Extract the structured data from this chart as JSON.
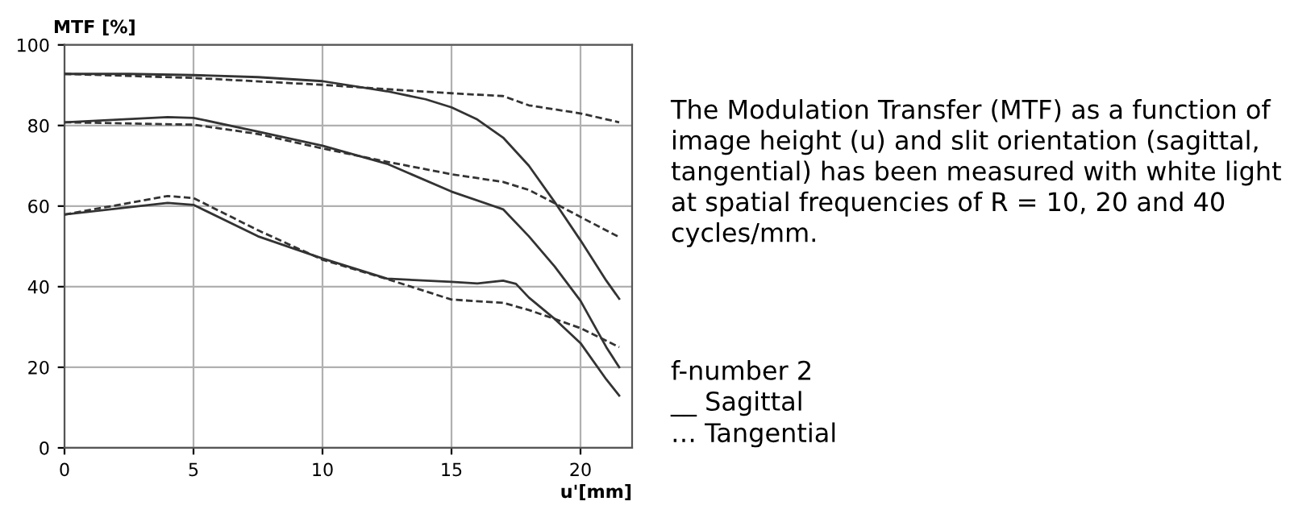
{
  "chart_data": {
    "type": "line",
    "ylabel": "MTF [%]",
    "xlabel": "u'[mm]",
    "xlim": [
      0,
      22
    ],
    "ylim": [
      0,
      100
    ],
    "xticks": [
      0,
      5,
      10,
      15,
      20
    ],
    "yticks": [
      0,
      20,
      40,
      60,
      80,
      100
    ],
    "grid": true,
    "marker": "none",
    "annotations": [
      "The Modulation Transfer (MTF) as a function of image height (u) and slit orientation (sagittal, tangential) has been measured with white light at spatial frequencies of R = 10, 20 and 40 cycles/mm.",
      "f-number 2",
      "__ Sagittal",
      "… Tangential"
    ],
    "series": [
      {
        "color": "#333333",
        "line_style": "solid",
        "x": [
          0,
          2.5,
          5,
          7.5,
          10,
          12.5,
          14,
          15,
          16,
          17,
          18,
          19,
          20,
          21,
          21.5
        ],
        "values": [
          92.8,
          92.8,
          92.5,
          92,
          91,
          88.5,
          86.5,
          84.5,
          81.5,
          77,
          70,
          61,
          51.5,
          41.5,
          37
        ]
      },
      {
        "color": "#333333",
        "line_style": "dashed",
        "x": [
          0,
          5,
          10,
          12.5,
          15,
          17,
          18,
          20,
          21.5
        ],
        "values": [
          92.8,
          91.8,
          90.1,
          89,
          88,
          87.3,
          85,
          83,
          80.8
        ]
      },
      {
        "color": "#333333",
        "line_style": "solid",
        "x": [
          0,
          4,
          5,
          7.5,
          10,
          12.5,
          15,
          17,
          18,
          19,
          20,
          21,
          21.5
        ],
        "values": [
          80.8,
          82.1,
          81.9,
          78.5,
          75,
          70.5,
          63.6,
          59.2,
          52.5,
          45,
          36.5,
          25,
          20
        ]
      },
      {
        "color": "#333333",
        "line_style": "dashed",
        "x": [
          0,
          5,
          7.5,
          10,
          12.5,
          15,
          17,
          18,
          19,
          20,
          21.5
        ],
        "values": [
          80.8,
          80.2,
          77.9,
          74.3,
          71,
          67.9,
          66,
          64,
          60.7,
          57.3,
          52.3
        ]
      },
      {
        "color": "#333333",
        "line_style": "solid",
        "x": [
          0,
          4,
          5,
          7.5,
          10,
          12.5,
          15,
          16,
          17,
          17.5,
          18,
          19,
          20,
          21,
          21.5
        ],
        "values": [
          57.9,
          60.8,
          60.3,
          52.5,
          47,
          42,
          41.2,
          40.8,
          41.5,
          40.7,
          37.3,
          32,
          26,
          17,
          13
        ]
      },
      {
        "color": "#333333",
        "line_style": "dashed",
        "x": [
          0,
          4,
          5,
          7.5,
          10,
          12.5,
          15,
          17,
          18,
          19,
          20,
          21.5
        ],
        "values": [
          57.9,
          62.5,
          62,
          54,
          46.7,
          41.9,
          36.8,
          36,
          34.2,
          32,
          29.7,
          25
        ]
      }
    ]
  }
}
